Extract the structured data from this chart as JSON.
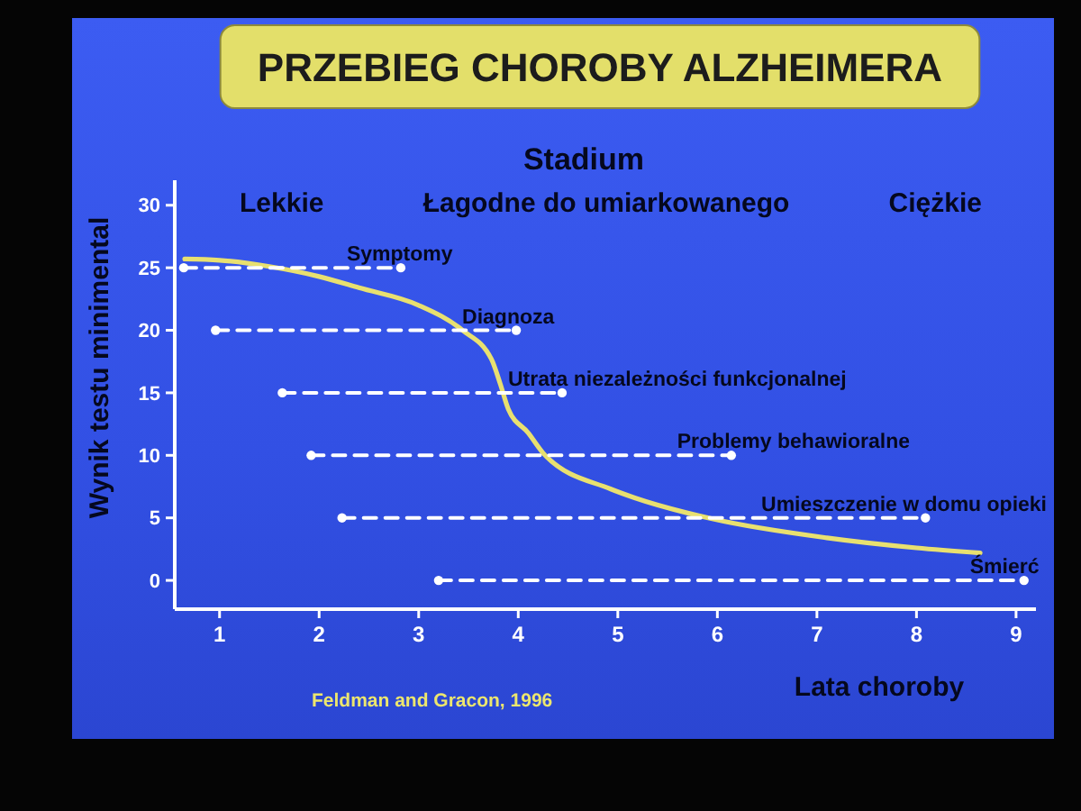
{
  "chart_data": {
    "type": "line",
    "title": "PRZEBIEG CHOROBY ALZHEIMERA",
    "subtitle": "Stadium",
    "xlabel": "Lata choroby",
    "ylabel": "Wynik testu minimental",
    "xlim": [
      0.55,
      9.2
    ],
    "xticks": [
      1,
      2,
      3,
      4,
      5,
      6,
      7,
      8,
      9
    ],
    "ylim": [
      -2.3,
      32
    ],
    "yticks": [
      0,
      5,
      10,
      15,
      20,
      25,
      30
    ],
    "series": [
      {
        "color": "#e8e070",
        "x": [
          0.65,
          1.0,
          1.5,
          2.0,
          2.4,
          3.0,
          3.44,
          3.73,
          3.82,
          3.9,
          4.1,
          4.27,
          4.93,
          5.17,
          5.96,
          7.1,
          8.0,
          8.64
        ],
        "values": [
          25.7,
          25.6,
          25.1,
          24.3,
          23.4,
          22,
          20,
          17.7,
          15.7,
          13.7,
          11.8,
          10,
          7.3,
          6.6,
          4.9,
          3.4,
          2.6,
          2.2
        ]
      },
      {
        "name": "Symptomy",
        "color": "#ffffff",
        "line_style": "dashed",
        "marker": "circle",
        "x": [
          0.64,
          2.82
        ],
        "values": [
          25,
          25
        ]
      },
      {
        "name": "Diagnoza",
        "color": "#ffffff",
        "line_style": "dashed",
        "marker": "circle",
        "x": [
          0.96,
          3.98
        ],
        "values": [
          20,
          20
        ]
      },
      {
        "name": "Utrata niezależności funkcjonalnej",
        "color": "#ffffff",
        "line_style": "dashed",
        "marker": "circle",
        "x": [
          1.63,
          4.44
        ],
        "values": [
          15,
          15
        ]
      },
      {
        "name": "Problemy behawioralne",
        "color": "#ffffff",
        "line_style": "dashed",
        "marker": "circle",
        "x": [
          1.92,
          6.14
        ],
        "values": [
          10,
          10
        ]
      },
      {
        "name": "Umieszczenie w domu opieki",
        "color": "#ffffff",
        "line_style": "dashed",
        "marker": "circle",
        "x": [
          2.23,
          8.09
        ],
        "values": [
          5,
          5
        ]
      },
      {
        "name": "Śmierć",
        "color": "#ffffff",
        "line_style": "dashed",
        "marker": "circle",
        "x": [
          3.2,
          9.08
        ],
        "values": [
          0,
          0
        ]
      }
    ],
    "annotations": [
      "Lekkie",
      "Łagodne do umiarkowanego",
      "Ciężkie",
      "Feldman and Gracon, 1996"
    ]
  }
}
